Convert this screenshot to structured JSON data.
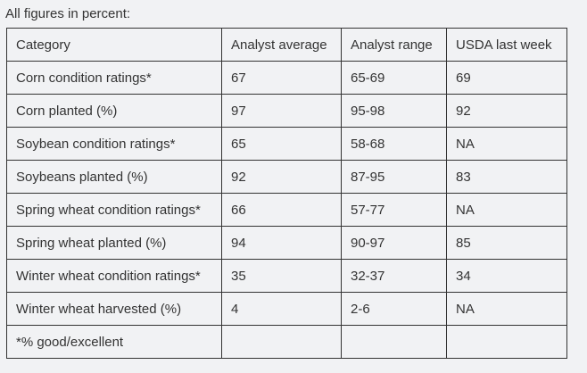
{
  "caption": "All figures in percent:",
  "table": {
    "headers": [
      "Category",
      "Analyst average",
      "Analyst range",
      "USDA last week"
    ],
    "rows": [
      [
        "Corn condition ratings*",
        "67",
        "65-69",
        "69"
      ],
      [
        "Corn planted (%)",
        "97",
        "95-98",
        "92"
      ],
      [
        "Soybean condition ratings*",
        "65",
        "58-68",
        "NA"
      ],
      [
        "Soybeans planted (%)",
        "92",
        "87-95",
        "83"
      ],
      [
        "Spring wheat condition ratings*",
        "66",
        "57-77",
        "NA"
      ],
      [
        "Spring wheat planted (%)",
        "94",
        "90-97",
        "85"
      ],
      [
        "Winter wheat condition ratings*",
        "35",
        "32-37",
        "34"
      ],
      [
        "Winter wheat harvested (%)",
        "4",
        "2-6",
        "NA"
      ],
      [
        "*% good/excellent",
        "",
        "",
        ""
      ]
    ]
  }
}
